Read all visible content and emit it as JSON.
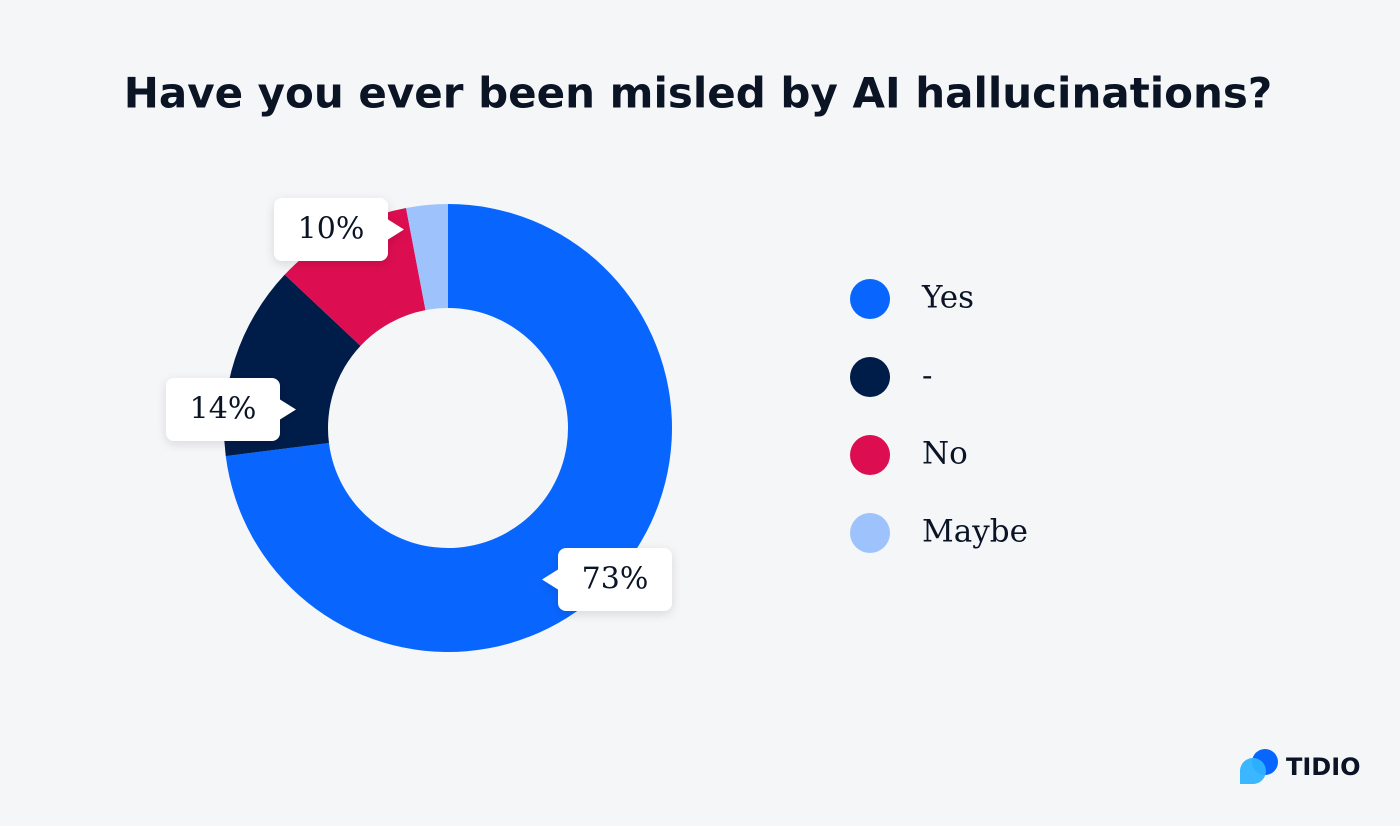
{
  "chart_data": {
    "type": "donut",
    "title": "Have you ever been misled by AI hallucinations?",
    "categories": [
      "Yes",
      "-",
      "No",
      "Maybe"
    ],
    "values": [
      73,
      14,
      10,
      3
    ],
    "value_labels": [
      "73%",
      "14%",
      "10%",
      null
    ],
    "colors": [
      "#0866ff",
      "#001c48",
      "#dc0d50",
      "#9ec3fc"
    ],
    "legend": "right"
  },
  "brand": "TIDIO"
}
